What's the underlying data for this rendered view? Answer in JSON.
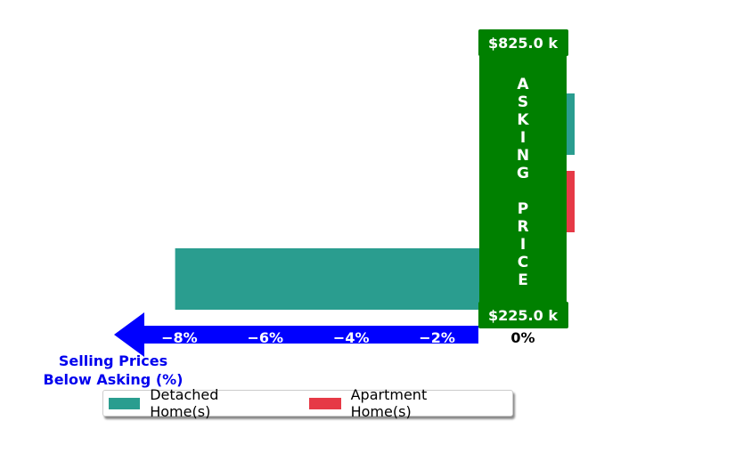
{
  "chart_data": {
    "type": "bar",
    "orientation": "horizontal",
    "categories": [
      "",
      "",
      ""
    ],
    "series": [
      {
        "name": "Detached Home(s)",
        "color": "#2a9d8f",
        "values": [
          0.08,
          null,
          -8.1
        ]
      },
      {
        "name": "Apartment Home(s)",
        "color": "#e63946",
        "values": [
          null,
          0.08,
          null
        ]
      }
    ],
    "xlim": [
      -9.6,
      1.3
    ],
    "xticks": [
      -8,
      -6,
      -4,
      -2,
      0
    ],
    "xtick_labels": [
      "−8%",
      "−6%",
      "−4%",
      "−2%",
      "0%"
    ],
    "xlabel_lines": [
      "Selling Prices",
      "Below Asking (%)"
    ],
    "banner": {
      "letters": [
        "A",
        "S",
        "K",
        "I",
        "N",
        "G",
        "",
        "P",
        "R",
        "I",
        "C",
        "E"
      ],
      "color": "#008000"
    },
    "price_top": "$825.0 k",
    "price_bottom": "$225.0 k",
    "arrow_color": "#0000ff",
    "legend_position": "bottom"
  },
  "legend": {
    "items": [
      {
        "label": "Detached Home(s)",
        "color": "#2a9d8f"
      },
      {
        "label": "Apartment Home(s)",
        "color": "#e63946"
      }
    ]
  }
}
